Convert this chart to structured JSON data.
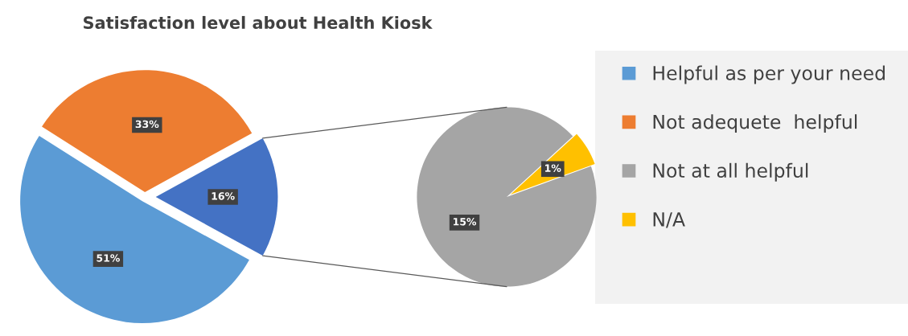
{
  "chart_data": [
    {
      "type": "pie",
      "title": "Satisfaction level about Health Kiosk",
      "categories": [
        "Helpful as per your need",
        "Not adequete  helpful",
        null
      ],
      "values": [
        51,
        33,
        16
      ],
      "colors": [
        "#5b9bd5",
        "#ed7d31",
        "#4472c4"
      ],
      "value_labels": [
        "51%",
        "33%",
        "16%"
      ],
      "legend": "right"
    },
    {
      "type": "pie",
      "categories": [
        "Not at all helpful",
        "N/A"
      ],
      "values": [
        15,
        1
      ],
      "colors": [
        "#a5a5a5",
        "#ffc000"
      ],
      "value_labels": [
        "15%",
        "1%"
      ],
      "legend": "right"
    }
  ]
}
